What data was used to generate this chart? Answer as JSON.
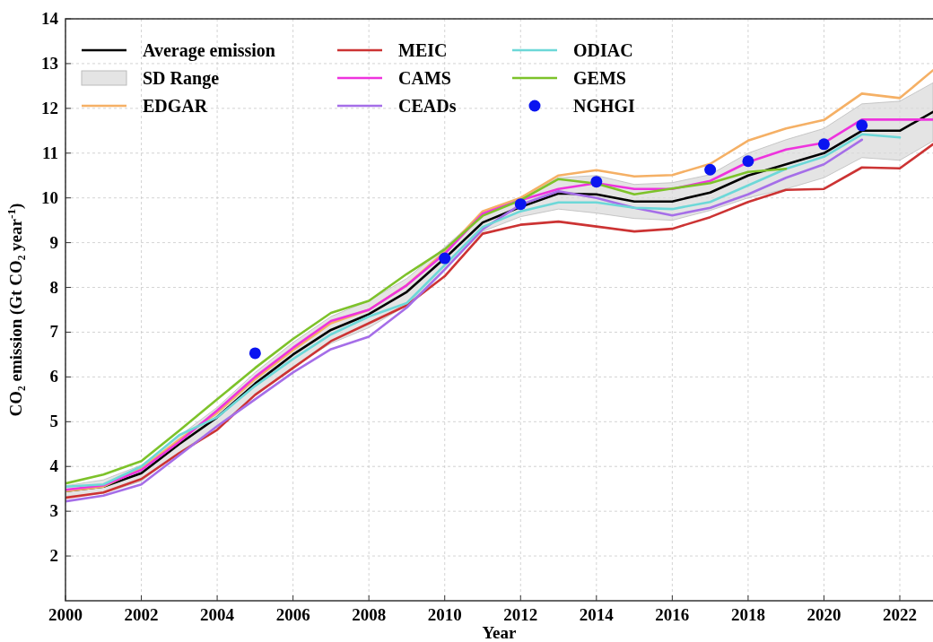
{
  "chart_data": {
    "type": "line",
    "xlabel": "Year",
    "ylabel": "CO₂ emission (Gt CO₂ year$^{-1}$)",
    "x": [
      2000,
      2001,
      2002,
      2003,
      2004,
      2005,
      2006,
      2007,
      2008,
      2009,
      2010,
      2011,
      2012,
      2013,
      2014,
      2015,
      2016,
      2017,
      2018,
      2019,
      2020,
      2021,
      2022,
      2022.875
    ],
    "xlim": [
      2000,
      2022.875
    ],
    "xticks": [
      2000,
      2002,
      2004,
      2006,
      2008,
      2010,
      2012,
      2014,
      2016,
      2018,
      2020,
      2022
    ],
    "ylim": [
      1,
      14
    ],
    "yticks": [
      2,
      3,
      4,
      5,
      6,
      7,
      8,
      9,
      10,
      11,
      12,
      13,
      14
    ],
    "grid": true,
    "legend": "top left",
    "line_style": "solid",
    "annotations": [
      "SD Range"
    ],
    "series": [
      {
        "name": "Average emission",
        "color": "#000000",
        "marker": "none",
        "values": [
          3.45,
          3.55,
          3.85,
          4.5,
          5.1,
          5.85,
          6.5,
          7.05,
          7.4,
          7.9,
          8.65,
          9.45,
          9.8,
          10.1,
          10.08,
          9.92,
          9.92,
          10.12,
          10.5,
          10.75,
          11.0,
          11.5,
          11.5,
          11.92
        ],
        "lower": [
          3.33,
          3.4,
          3.67,
          4.32,
          4.88,
          5.6,
          6.23,
          6.75,
          7.1,
          7.6,
          8.4,
          9.25,
          9.58,
          9.75,
          9.66,
          9.54,
          9.5,
          9.72,
          10.0,
          10.2,
          10.45,
          10.9,
          10.84,
          11.27
        ],
        "upper": [
          3.57,
          3.7,
          4.03,
          4.68,
          5.32,
          6.1,
          6.77,
          7.35,
          7.7,
          8.2,
          8.9,
          9.65,
          10.02,
          10.45,
          10.5,
          10.3,
          10.34,
          10.52,
          11.0,
          11.3,
          11.55,
          12.1,
          12.16,
          12.57
        ]
      },
      {
        "name": "EDGAR",
        "color": "#f5b065",
        "marker": "none",
        "values": [
          3.45,
          3.55,
          3.95,
          4.6,
          5.2,
          5.95,
          6.6,
          7.2,
          7.5,
          8.05,
          8.8,
          9.7,
          10.0,
          10.5,
          10.62,
          10.48,
          10.51,
          10.76,
          11.28,
          11.55,
          11.74,
          12.33,
          12.23,
          12.85
        ]
      },
      {
        "name": "MEIC",
        "color": "#cc3333",
        "marker": "none",
        "values": [
          3.3,
          3.42,
          3.72,
          4.3,
          4.82,
          5.6,
          6.2,
          6.8,
          7.2,
          7.6,
          8.25,
          9.2,
          9.4,
          9.47,
          9.36,
          9.25,
          9.31,
          9.57,
          9.91,
          10.18,
          10.2,
          10.68,
          10.66,
          11.2
        ]
      },
      {
        "name": "CAMS",
        "color": "#ee33dd",
        "marker": "none",
        "values": [
          3.48,
          3.58,
          3.92,
          4.55,
          5.25,
          6.0,
          6.65,
          7.25,
          7.5,
          8.05,
          8.75,
          9.65,
          9.95,
          10.2,
          10.33,
          10.2,
          10.2,
          10.38,
          10.8,
          11.08,
          11.23,
          11.75,
          11.75,
          11.75
        ]
      },
      {
        "name": "CEADs",
        "color": "#a56ee8",
        "marker": "none",
        "x": [
          2000,
          2001,
          2002,
          2003,
          2004,
          2005,
          2006,
          2007,
          2008,
          2009,
          2010,
          2011,
          2012,
          2013,
          2014,
          2015,
          2016,
          2017,
          2018,
          2019,
          2020,
          2021
        ],
        "values": [
          3.22,
          3.35,
          3.6,
          4.25,
          4.9,
          5.5,
          6.1,
          6.62,
          6.9,
          7.55,
          8.4,
          9.3,
          9.85,
          10.15,
          10.0,
          9.78,
          9.61,
          9.78,
          10.08,
          10.45,
          10.75,
          11.3
        ]
      },
      {
        "name": "ODIAC",
        "color": "#6dd8d8",
        "marker": "none",
        "x": [
          2000,
          2001,
          2002,
          2003,
          2004,
          2005,
          2006,
          2007,
          2008,
          2009,
          2010,
          2011,
          2012,
          2013,
          2014,
          2015,
          2016,
          2017,
          2018,
          2019,
          2020,
          2021,
          2022
        ],
        "values": [
          3.55,
          3.6,
          4.0,
          4.7,
          5.1,
          5.8,
          6.4,
          6.95,
          7.35,
          7.65,
          8.5,
          9.35,
          9.7,
          9.9,
          9.9,
          9.78,
          9.75,
          9.91,
          10.28,
          10.65,
          10.92,
          11.42,
          11.35
        ]
      },
      {
        "name": "GEMS",
        "color": "#7dc22a",
        "marker": "none",
        "x": [
          2000,
          2001,
          2002,
          2003,
          2004,
          2005,
          2006,
          2007,
          2008,
          2009,
          2010,
          2011,
          2012,
          2013,
          2014,
          2015,
          2016,
          2017,
          2018,
          2019
        ],
        "values": [
          3.62,
          3.82,
          4.12,
          4.8,
          5.5,
          6.2,
          6.85,
          7.43,
          7.7,
          8.3,
          8.85,
          9.6,
          9.95,
          10.42,
          10.32,
          10.08,
          10.21,
          10.33,
          10.58,
          10.65
        ]
      },
      {
        "name": "NGHGI",
        "type": "scatter",
        "color": "#0a14f0",
        "marker": "circle",
        "x": [
          2005,
          2010,
          2012,
          2014,
          2017,
          2018,
          2020,
          2021
        ],
        "values": [
          6.53,
          8.65,
          9.86,
          10.36,
          10.63,
          10.82,
          11.2,
          11.62
        ]
      }
    ]
  }
}
